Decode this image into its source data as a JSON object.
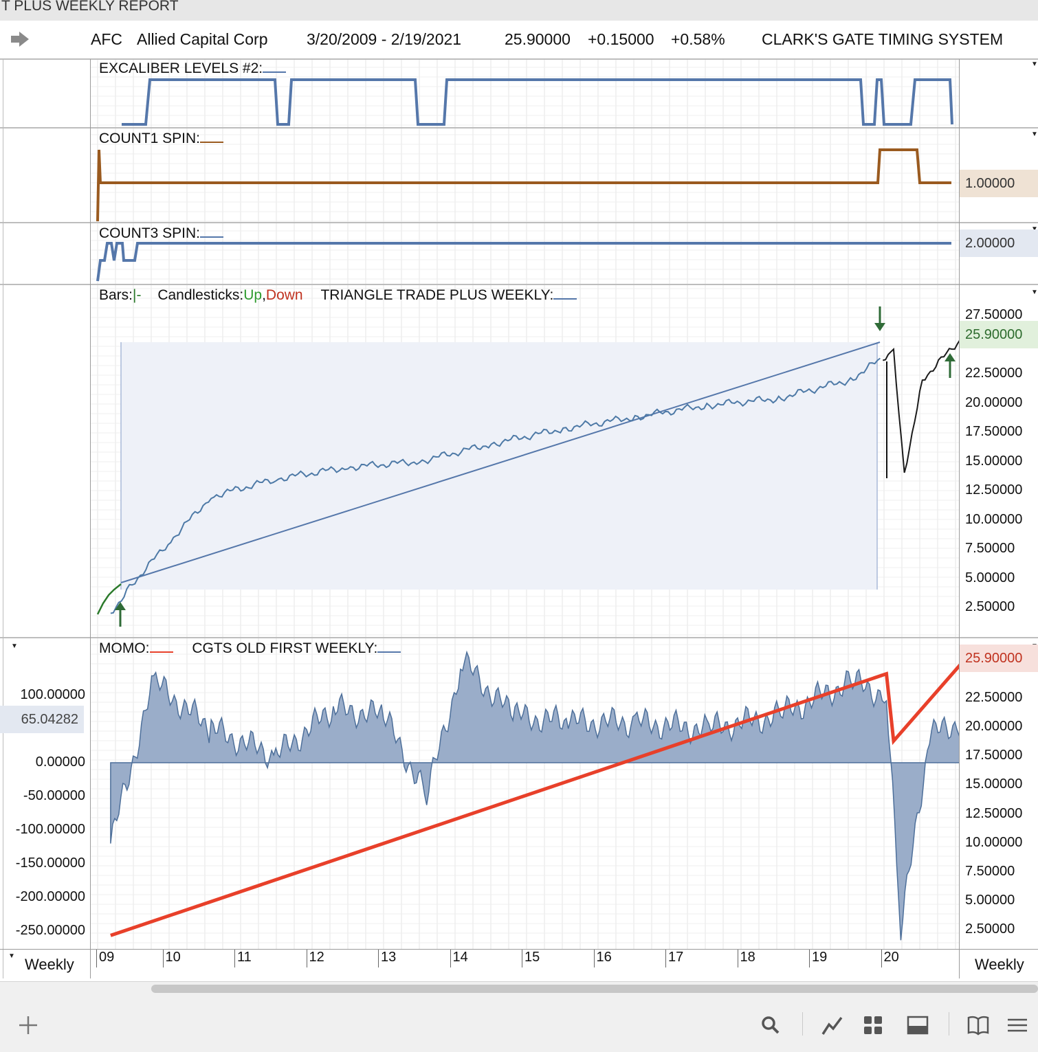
{
  "window": {
    "title": "T PLUS WEEKLY REPORT"
  },
  "header": {
    "symbol": "AFC",
    "company": "Allied Capital Corp",
    "date_range": "3/20/2009 - 2/19/2021",
    "price": "25.90000",
    "change": "+0.15000",
    "change_pct": "+0.58%",
    "system": "CLARK'S GATE TIMING SYSTEM"
  },
  "panels": {
    "excaliber": {
      "label": "EXCALIBER LEVELS #2:",
      "color": "#5577aa"
    },
    "count1": {
      "label": "COUNT1 SPIN:",
      "color": "#9a5a1f",
      "value": "1.00000"
    },
    "count3": {
      "label": "COUNT3 SPIN:",
      "color": "#5577aa",
      "value": "2.00000"
    },
    "price": {
      "bars_label": "Bars:",
      "bars_glyph": "|-",
      "candles_label": "Candlesticks:",
      "up_label": "Up",
      "comma": ",",
      "down_label": "Down",
      "indicator_label": "TRIANGLE TRADE PLUS WEEKLY",
      "colon": ":",
      "last_value": "25.90000",
      "axis_ticks": [
        "27.50000",
        "22.50000",
        "20.00000",
        "17.50000",
        "15.00000",
        "12.50000",
        "10.00000",
        "7.50000",
        "5.00000",
        "2.50000"
      ]
    },
    "momo": {
      "label": "MOMO:",
      "indicator_label": "CGTS OLD FIRST WEEKLY",
      "colon": ":",
      "last_value": "65.04282",
      "right_value": "25.90000",
      "left_ticks": [
        "100.00000",
        "0.00000",
        "-50.00000",
        "-100.00000",
        "-150.00000",
        "-200.00000",
        "-250.00000"
      ],
      "right_ticks": [
        "22.50000",
        "20.00000",
        "17.50000",
        "15.00000",
        "12.50000",
        "10.00000",
        "7.50000",
        "5.00000",
        "2.50000"
      ]
    }
  },
  "time_axis": {
    "labels": [
      "09",
      "10",
      "11",
      "12",
      "13",
      "14",
      "15",
      "16",
      "17",
      "18",
      "19",
      "20"
    ],
    "left_period": "Weekly",
    "right_period": "Weekly"
  },
  "footer": {
    "icons": [
      "plus-icon",
      "search-icon",
      "chart-line-icon",
      "grid-icon",
      "panel-icon",
      "book-icon",
      "menu-icon"
    ]
  },
  "chart_data": [
    {
      "type": "line",
      "title": "EXCALIBER LEVELS #2",
      "x": [
        2009.2,
        2009.6,
        2009.8,
        2012.5,
        2012.7,
        2014.4,
        2014.8,
        2020.1,
        2020.4,
        2020.8,
        2021.1
      ],
      "y": [
        0,
        0,
        1,
        1,
        0,
        1,
        0,
        1,
        0,
        1,
        0
      ]
    },
    {
      "type": "line",
      "title": "COUNT1 SPIN",
      "x": [
        2009.2,
        2020.1,
        2020.4,
        2020.7,
        2021.1
      ],
      "y": [
        1,
        1,
        2,
        1,
        1
      ]
    },
    {
      "type": "line",
      "title": "COUNT3 SPIN",
      "x": [
        2009.2,
        2009.6,
        2021.1
      ],
      "y": [
        1,
        2,
        2
      ]
    },
    {
      "type": "line",
      "title": "TRIANGLE TRADE PLUS WEEKLY",
      "series": [
        {
          "name": "Bars",
          "x": [
            2009.2,
            2009.5,
            2010.0,
            2010.6,
            2011.5,
            2012.5,
            2013.5,
            2014.5,
            2015.5,
            2016.5,
            2017.5,
            2018.5,
            2019.5,
            2020.1,
            2020.25,
            2020.5,
            2021.1
          ],
          "y": [
            2,
            4.5,
            8,
            12,
            13.5,
            14.5,
            15,
            16.5,
            17.8,
            18.8,
            19.8,
            20.4,
            22,
            24.5,
            14,
            22,
            25.9
          ]
        }
      ]
    },
    {
      "type": "area",
      "title": "MOMO",
      "x": [
        2009.2,
        2009.8,
        2010.6,
        2011.5,
        2012.3,
        2013.0,
        2013.6,
        2014.1,
        2014.8,
        2015.6,
        2016.5,
        2017.5,
        2018.5,
        2019.5,
        2020.0,
        2020.2,
        2020.6,
        2021.1
      ],
      "y": [
        -120,
        120,
        50,
        10,
        80,
        70,
        -50,
        150,
        70,
        60,
        60,
        50,
        70,
        120,
        100,
        -250,
        40,
        65
      ]
    },
    {
      "type": "line",
      "title": "CGTS OLD FIRST WEEKLY",
      "x": [
        2009.2,
        2020.0,
        2020.1,
        2021.1
      ],
      "y": [
        2.0,
        24.6,
        18.8,
        25.9
      ]
    }
  ]
}
